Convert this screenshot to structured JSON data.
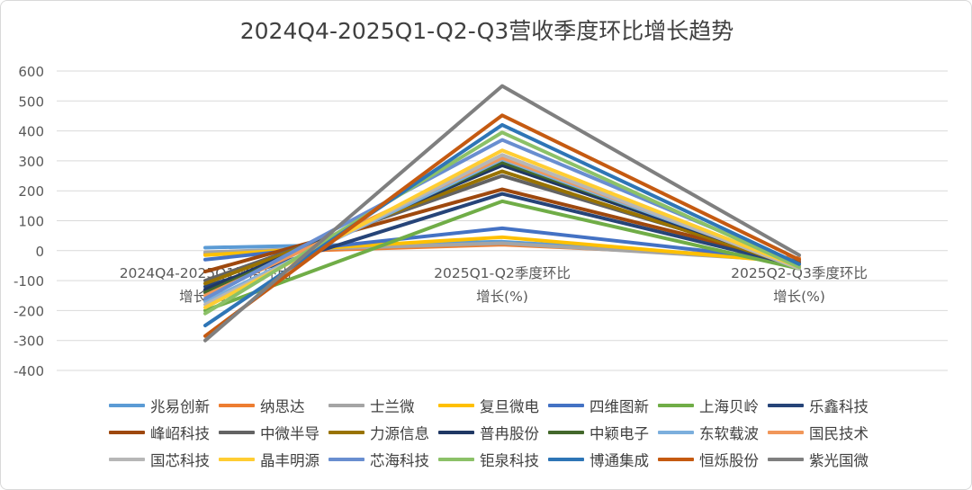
{
  "chart_data": {
    "type": "line",
    "title": "2024Q4-2025Q1-Q2-Q3营收季度环比增长趋势",
    "categories": [
      "2024Q4-2025Q1季度环比增长(%)",
      "2025Q1-Q2季度环比增长(%)",
      "2025Q2-Q3季度环比增长(%)"
    ],
    "category_lines": [
      [
        "2024Q4-2025Q1季度环比",
        "增长(%)"
      ],
      [
        "2025Q1-Q2季度环比",
        "增长(%)"
      ],
      [
        "2025Q2-Q3季度环比",
        "增长(%)"
      ]
    ],
    "ylim": [
      -400,
      600
    ],
    "yticks": [
      -400,
      -300,
      -200,
      -100,
      0,
      100,
      200,
      300,
      400,
      500,
      600
    ],
    "grid": true,
    "legend_position": "bottom",
    "series": [
      {
        "name": "兆易创新",
        "color": "#5b9bd5",
        "values": [
          10,
          30,
          -30
        ]
      },
      {
        "name": "纳思达",
        "color": "#ed7d31",
        "values": [
          -10,
          20,
          -25
        ]
      },
      {
        "name": "士兰微",
        "color": "#a5a5a5",
        "values": [
          -5,
          25,
          -35
        ]
      },
      {
        "name": "复旦微电",
        "color": "#ffc000",
        "values": [
          -15,
          45,
          -40
        ]
      },
      {
        "name": "四维图新",
        "color": "#4472c4",
        "values": [
          -30,
          75,
          -35
        ]
      },
      {
        "name": "上海贝岭",
        "color": "#70ad47",
        "values": [
          -200,
          165,
          -60
        ]
      },
      {
        "name": "乐鑫科技",
        "color": "#264478",
        "values": [
          -120,
          190,
          -50
        ]
      },
      {
        "name": "峰岹科技",
        "color": "#9e480e",
        "values": [
          -70,
          205,
          -40
        ]
      },
      {
        "name": "中微半导",
        "color": "#636363",
        "values": [
          -100,
          250,
          -45
        ]
      },
      {
        "name": "力源信息",
        "color": "#997300",
        "values": [
          -110,
          265,
          -55
        ]
      },
      {
        "name": "普冉股份",
        "color": "#203864",
        "values": [
          -130,
          285,
          -50
        ]
      },
      {
        "name": "中颖电子",
        "color": "#43682b",
        "values": [
          -140,
          295,
          -45
        ]
      },
      {
        "name": "东软载波",
        "color": "#7cafdd",
        "values": [
          -170,
          305,
          -55
        ]
      },
      {
        "name": "国民技术",
        "color": "#f1975a",
        "values": [
          -150,
          310,
          -50
        ]
      },
      {
        "name": "国芯科技",
        "color": "#b7b7b7",
        "values": [
          -180,
          320,
          -60
        ]
      },
      {
        "name": "晶丰明源",
        "color": "#ffcd33",
        "values": [
          -190,
          335,
          -55
        ]
      },
      {
        "name": "芯海科技",
        "color": "#698ed0",
        "values": [
          -160,
          370,
          -45
        ]
      },
      {
        "name": "钜泉科技",
        "color": "#8cc168",
        "values": [
          -210,
          395,
          -55
        ]
      },
      {
        "name": "博通集成",
        "color": "#2e75b6",
        "values": [
          -250,
          420,
          -45
        ]
      },
      {
        "name": "恒烁股份",
        "color": "#c55a11",
        "values": [
          -285,
          452,
          -30
        ]
      },
      {
        "name": "紫光国微",
        "color": "#7f7f7f",
        "values": [
          -300,
          550,
          -15
        ]
      }
    ]
  }
}
